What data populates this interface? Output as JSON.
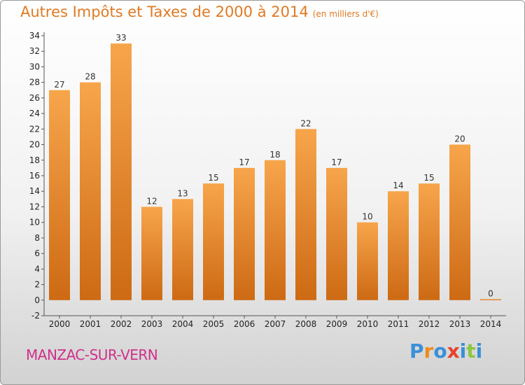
{
  "title": "Autres Impôts et Taxes de 2000 à 2014",
  "subtitle": "(en milliers d'€)",
  "town": "MANZAC-SUR-VERN",
  "logo": {
    "letters": [
      "P",
      "r",
      "o",
      "x",
      "i",
      "t",
      "i"
    ],
    "colors": [
      "#3a8fd8",
      "#f08a1e",
      "#3a8fd8",
      "#e8412c",
      "#3a8fd8",
      "#8cc63f",
      "#3a8fd8"
    ]
  },
  "colors": {
    "bar_light": "#f7a54b",
    "bar_dark": "#cd6a14",
    "accent": "#e07a23"
  },
  "chart_data": {
    "type": "bar",
    "title": "Autres Impôts et Taxes de 2000 à 2014",
    "subtitle": "(en milliers d'€)",
    "categories": [
      "2000",
      "2001",
      "2002",
      "2003",
      "2004",
      "2005",
      "2006",
      "2007",
      "2008",
      "2009",
      "2010",
      "2011",
      "2012",
      "2013",
      "2014"
    ],
    "values": [
      27,
      28,
      33,
      12,
      13,
      15,
      17,
      18,
      22,
      17,
      10,
      14,
      15,
      20,
      0
    ],
    "ylim": [
      -2,
      34
    ],
    "yticks": [
      -2,
      0,
      2,
      4,
      6,
      8,
      10,
      12,
      14,
      16,
      18,
      20,
      22,
      24,
      26,
      28,
      30,
      32,
      34
    ],
    "grid": false,
    "xlabel": "",
    "ylabel": ""
  }
}
